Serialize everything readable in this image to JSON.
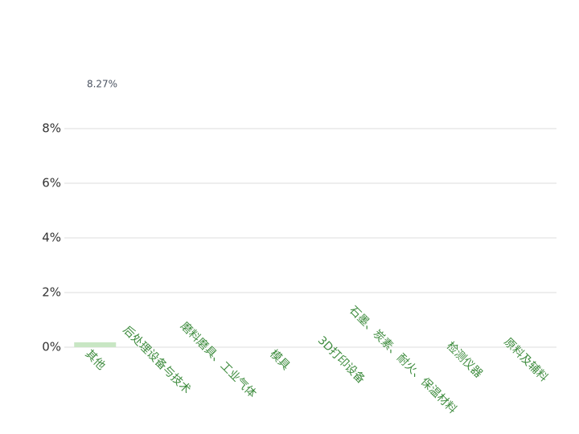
{
  "chart_data": {
    "type": "bar",
    "annotation": "8.27%",
    "categories": [
      "其他",
      "后处理设备与技术",
      "磨料磨具、工业气体",
      "模具",
      "3D打印设备",
      "石墨、炭素、耐火、保温材料",
      "检测仪器",
      "原料及辅料"
    ],
    "values": [
      0.18,
      null,
      null,
      null,
      null,
      null,
      null,
      null
    ],
    "color": "#c8e6c4",
    "ylim": [
      0,
      8
    ],
    "yticks": [
      {
        "value": 0,
        "label": "0%"
      },
      {
        "value": 2,
        "label": "2%"
      },
      {
        "value": 4,
        "label": "4%"
      },
      {
        "value": 6,
        "label": "6%"
      },
      {
        "value": 8,
        "label": "8%"
      }
    ],
    "grid": true
  }
}
